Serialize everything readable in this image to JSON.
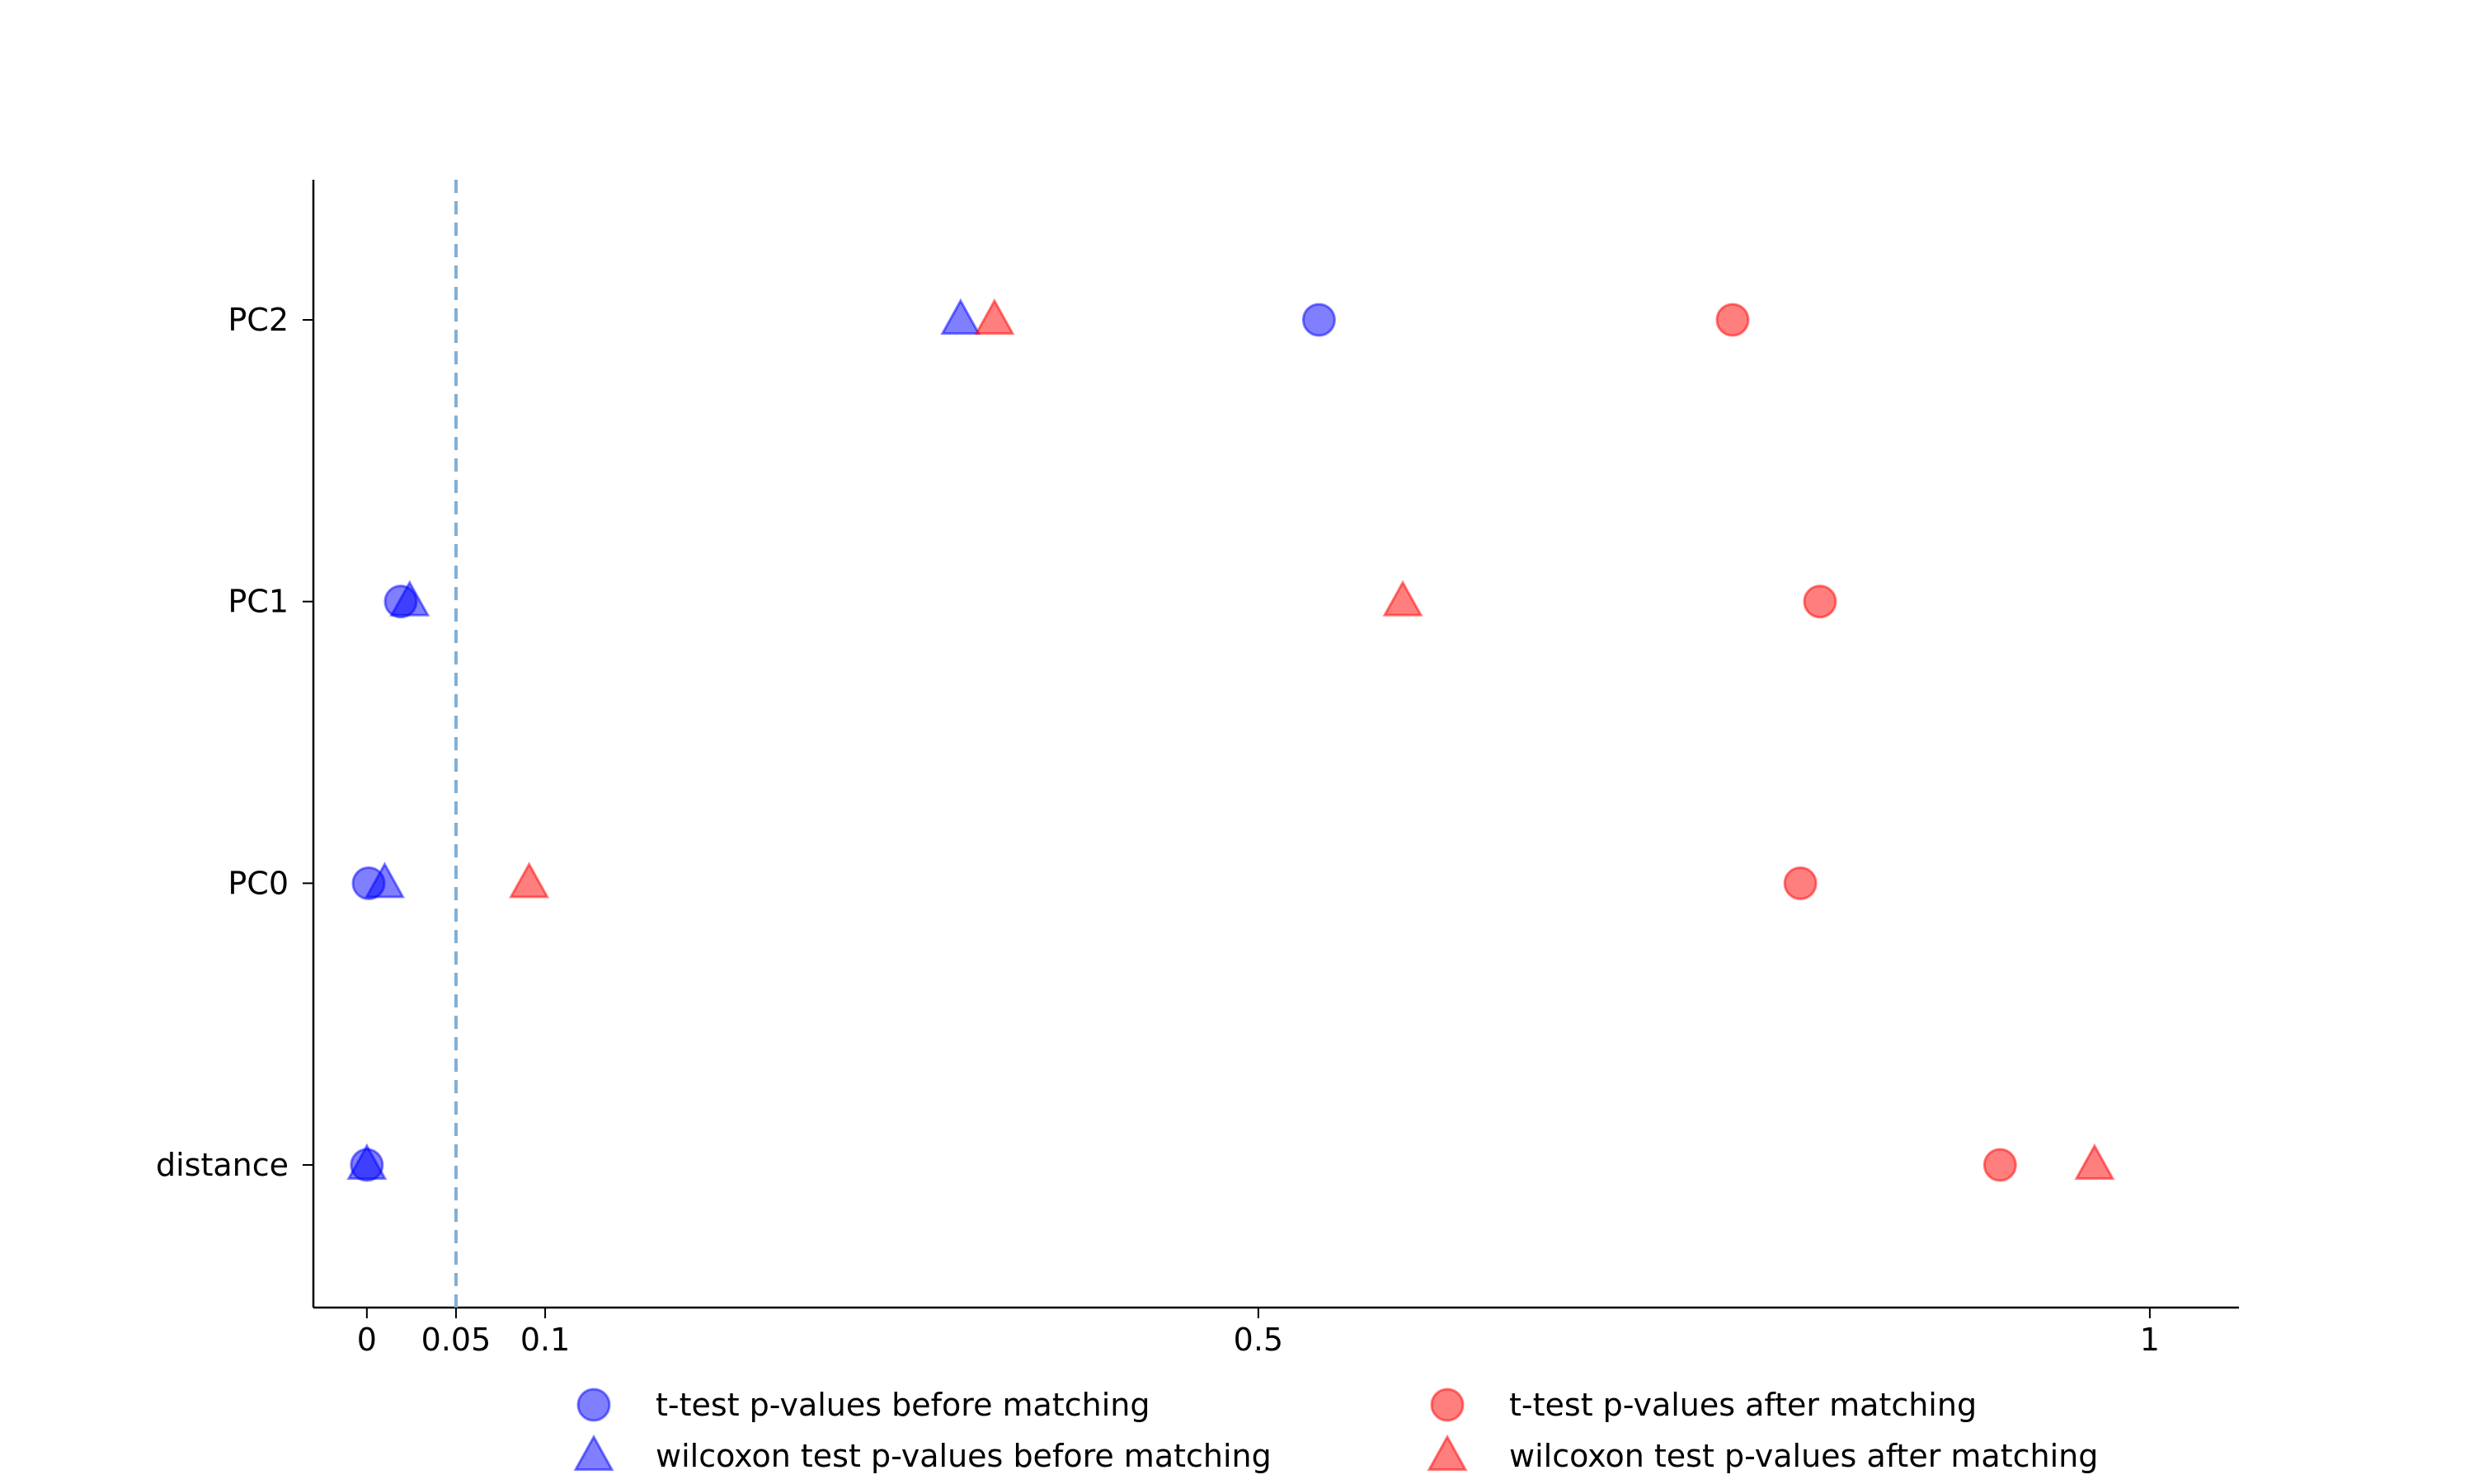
{
  "chart_data": {
    "type": "scatter",
    "title": "",
    "xlabel": "",
    "ylabel": "",
    "xlim": [
      -0.03,
      1.05
    ],
    "xticks": [
      0,
      0.05,
      0.1,
      0.5,
      1
    ],
    "xtick_labels": [
      "0",
      "0.05",
      "0.1",
      "0.5",
      "1"
    ],
    "categories": [
      "distance",
      "PC0",
      "PC1",
      "PC2"
    ],
    "reference_line": {
      "x": 0.05,
      "style": "dashed",
      "color": "#7fb0d8"
    },
    "grid": false,
    "legend": {
      "placement": "bottom",
      "columns": 2
    },
    "series": [
      {
        "name": "t-test p-values before matching",
        "marker": "circle",
        "color": "#0000ff",
        "values": [
          0.0,
          0.001,
          0.019,
          0.534
        ]
      },
      {
        "name": "wilcoxon test p-values before matching",
        "marker": "triangle",
        "color": "#0000ff",
        "values": [
          0.0,
          0.01,
          0.024,
          0.333
        ]
      },
      {
        "name": "t-test p-values after matching",
        "marker": "circle",
        "color": "#ff0000",
        "values": [
          0.916,
          0.804,
          0.815,
          0.766
        ]
      },
      {
        "name": "wilcoxon test p-values after matching",
        "marker": "triangle",
        "color": "#ff0000",
        "values": [
          0.969,
          0.091,
          0.581,
          0.352
        ]
      }
    ]
  }
}
